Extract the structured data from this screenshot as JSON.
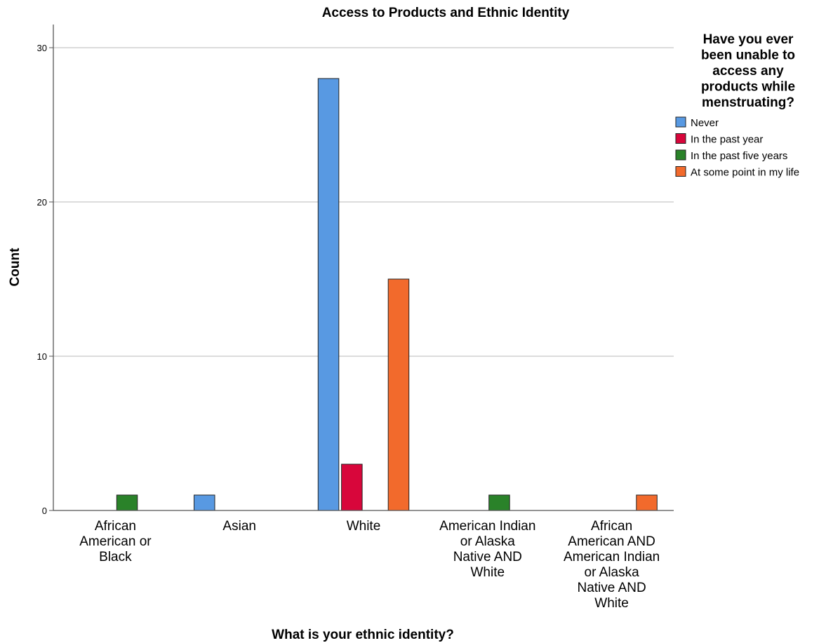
{
  "chart_data": {
    "type": "bar",
    "title": "Access to Products and Ethnic Identity",
    "xlabel": "What is your ethnic identity?",
    "ylabel": "Count",
    "ylim": [
      0,
      31.5
    ],
    "yticks": [
      0,
      10,
      20,
      30
    ],
    "grid": true,
    "categories": [
      "African American or Black",
      "Asian",
      "White",
      "American Indian or Alaska Native AND White",
      "African American AND American Indian or Alaska Native AND White"
    ],
    "category_lines": [
      [
        "African",
        "American or",
        "Black"
      ],
      [
        "Asian"
      ],
      [
        "White"
      ],
      [
        "American Indian",
        "or Alaska",
        "Native AND",
        "White"
      ],
      [
        "African",
        "American AND",
        "American Indian",
        "or Alaska",
        "Native AND",
        "White"
      ]
    ],
    "legend": {
      "title_lines": [
        "Have you ever",
        "been unable to",
        "access any",
        "products while",
        "menstruating?"
      ],
      "position": "right"
    },
    "series": [
      {
        "name": "Never",
        "color": "#5899e2",
        "values": [
          0,
          1,
          28,
          0,
          0
        ]
      },
      {
        "name": "In the past year",
        "color": "#d8063b",
        "values": [
          0,
          0,
          3,
          0,
          0
        ]
      },
      {
        "name": "In the past five years",
        "color": "#2a8229",
        "values": [
          1,
          0,
          0,
          1,
          0
        ]
      },
      {
        "name": "At some point in my life",
        "color": "#f26a2c",
        "values": [
          0,
          0,
          15,
          0,
          1
        ]
      }
    ]
  }
}
